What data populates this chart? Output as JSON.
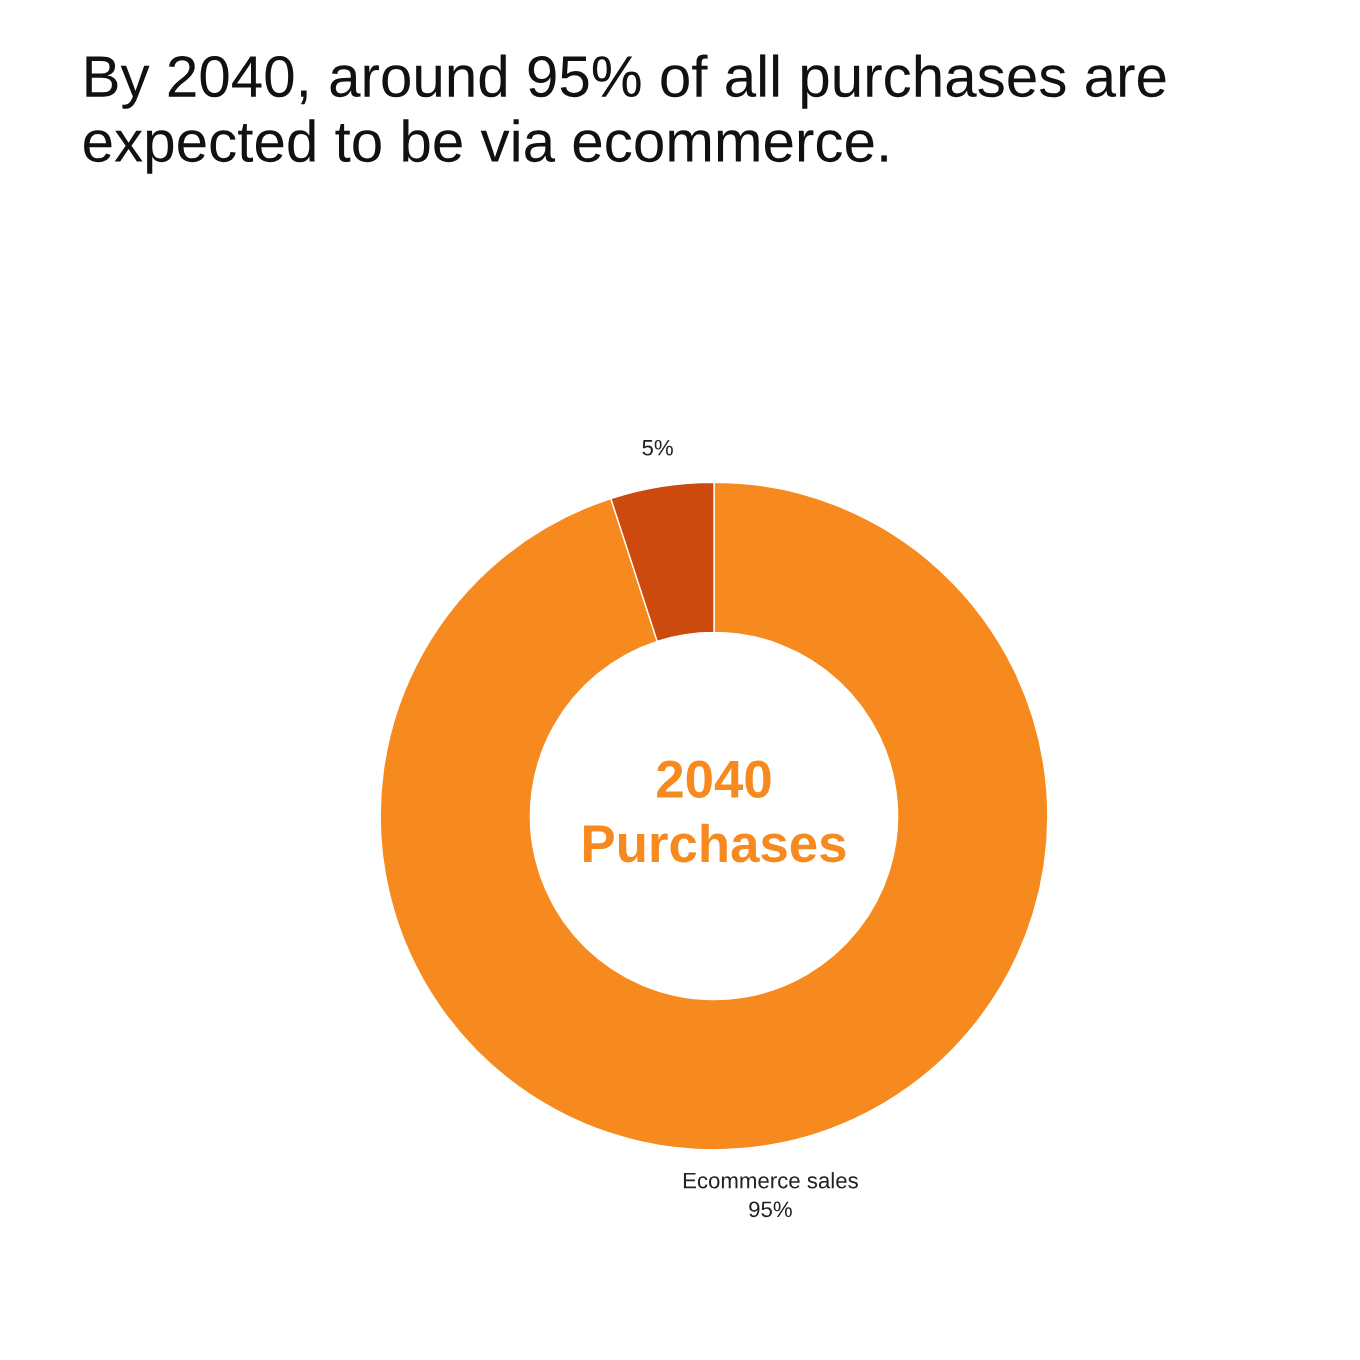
{
  "chart_data": {
    "type": "donut",
    "title": "By 2040, around 95% of all purchases are expected to be via ecommerce.",
    "categories": [
      "Ecommerce sales",
      null
    ],
    "values": [
      95,
      5
    ],
    "colors": [
      "#f78a1f",
      "#cc4a0e"
    ],
    "value_labels": [
      "95%",
      "5%"
    ],
    "annotations": [
      "2040\nPurchases"
    ],
    "legend": false
  }
}
